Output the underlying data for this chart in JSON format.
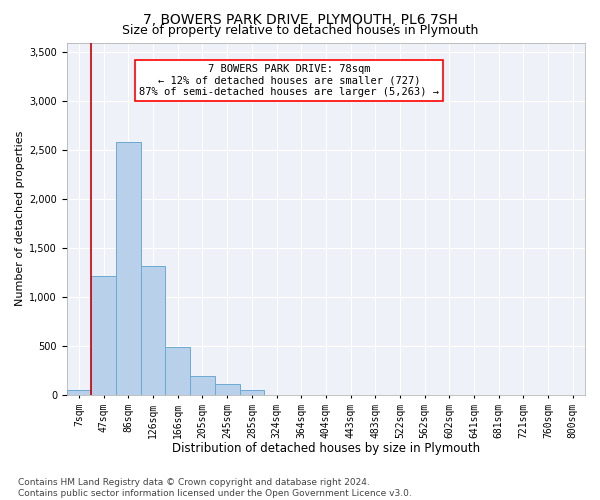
{
  "title1": "7, BOWERS PARK DRIVE, PLYMOUTH, PL6 7SH",
  "title2": "Size of property relative to detached houses in Plymouth",
  "xlabel": "Distribution of detached houses by size in Plymouth",
  "ylabel": "Number of detached properties",
  "bar_labels": [
    "7sqm",
    "47sqm",
    "86sqm",
    "126sqm",
    "166sqm",
    "205sqm",
    "245sqm",
    "285sqm",
    "324sqm",
    "364sqm",
    "404sqm",
    "443sqm",
    "483sqm",
    "522sqm",
    "562sqm",
    "602sqm",
    "641sqm",
    "681sqm",
    "721sqm",
    "760sqm",
    "800sqm"
  ],
  "bar_values": [
    50,
    1220,
    2580,
    1320,
    490,
    195,
    110,
    55,
    0,
    0,
    0,
    0,
    0,
    0,
    0,
    0,
    0,
    0,
    0,
    0,
    0
  ],
  "bar_color": "#b8d0ea",
  "bar_edge_color": "#6aaad4",
  "annotation_line1": "7 BOWERS PARK DRIVE: 78sqm",
  "annotation_line2": "← 12% of detached houses are smaller (727)",
  "annotation_line3": "87% of semi-detached houses are larger (5,263) →",
  "vline_x_idx": 1,
  "vline_color": "#cc0000",
  "ylim": [
    0,
    3600
  ],
  "yticks": [
    0,
    500,
    1000,
    1500,
    2000,
    2500,
    3000,
    3500
  ],
  "bg_color": "#eef2f8",
  "grid_color": "#ffffff",
  "footnote": "Contains HM Land Registry data © Crown copyright and database right 2024.\nContains public sector information licensed under the Open Government Licence v3.0.",
  "title1_fontsize": 10,
  "title2_fontsize": 9,
  "xlabel_fontsize": 8.5,
  "ylabel_fontsize": 8,
  "tick_fontsize": 7,
  "annotation_fontsize": 7.5,
  "footnote_fontsize": 6.5
}
